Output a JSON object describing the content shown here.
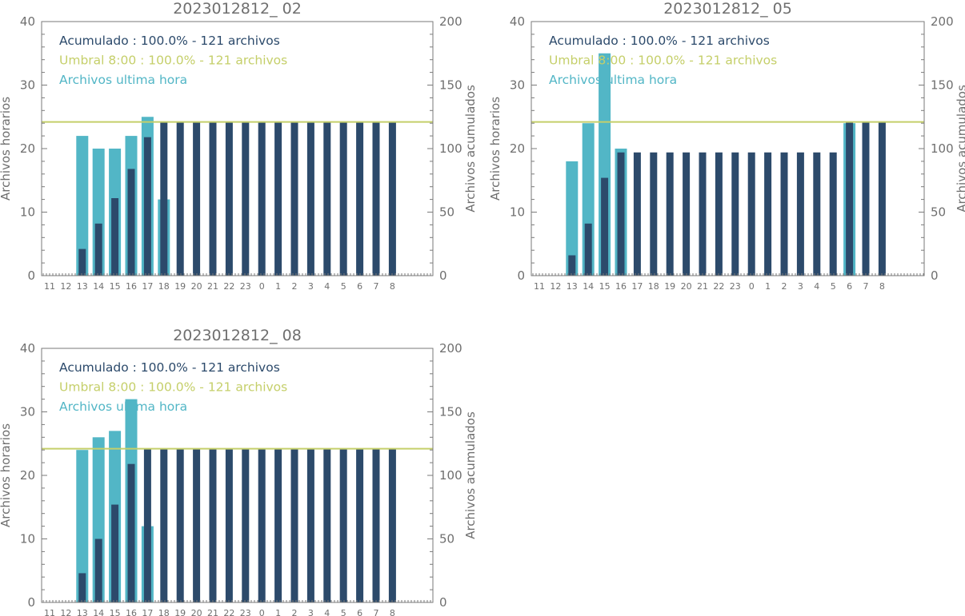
{
  "colors": {
    "hourly": "#52b6c6",
    "cumulative": "#2c4a6b",
    "threshold": "#c5cf6a",
    "axis": "#7a7a7a",
    "text": "#6f6f6f"
  },
  "chart_data": [
    {
      "type": "bar",
      "title": "2023012812_ 02",
      "ylabel": "Archivos horarios",
      "y2label": "Archivos acumulados",
      "ylim": [
        0,
        40
      ],
      "y2lim": [
        0,
        200
      ],
      "yticks": [
        0,
        10,
        20,
        30,
        40
      ],
      "y2ticks": [
        0,
        50,
        100,
        150,
        200
      ],
      "categories": [
        "11",
        "12",
        "13",
        "14",
        "15",
        "16",
        "17",
        "18",
        "19",
        "20",
        "21",
        "22",
        "23",
        "0",
        "1",
        "2",
        "3",
        "4",
        "5",
        "6",
        "7",
        "8"
      ],
      "threshold": 121,
      "legend": [
        {
          "text": "Acumulado : 100.0% - 121 archivos",
          "color_key": "cumulative"
        },
        {
          "text": "Umbral 8:00 : 100.0% - 121 archivos",
          "color_key": "threshold"
        },
        {
          "text": "Archivos ultima hora",
          "color_key": "hourly"
        }
      ],
      "series": [
        {
          "name": "Archivos ultima hora",
          "values": [
            0,
            0,
            22,
            20,
            20,
            22,
            25,
            12,
            0,
            0,
            0,
            0,
            0,
            0,
            0,
            0,
            0,
            0,
            0,
            0,
            0,
            0
          ]
        },
        {
          "name": "Acumulado",
          "values": [
            0,
            0,
            21,
            41,
            61,
            84,
            109,
            121,
            121,
            121,
            121,
            121,
            121,
            121,
            121,
            121,
            121,
            121,
            121,
            121,
            121,
            121
          ]
        }
      ]
    },
    {
      "type": "bar",
      "title": "2023012812_ 05",
      "ylabel": "Archivos horarios",
      "y2label": "Archivos acumulados",
      "ylim": [
        0,
        40
      ],
      "y2lim": [
        0,
        200
      ],
      "yticks": [
        0,
        10,
        20,
        30,
        40
      ],
      "y2ticks": [
        0,
        50,
        100,
        150,
        200
      ],
      "categories": [
        "11",
        "12",
        "13",
        "14",
        "15",
        "16",
        "17",
        "18",
        "19",
        "20",
        "21",
        "22",
        "23",
        "0",
        "1",
        "2",
        "3",
        "4",
        "5",
        "6",
        "7",
        "8"
      ],
      "threshold": 121,
      "legend": [
        {
          "text": "Acumulado : 100.0% - 121 archivos",
          "color_key": "cumulative"
        },
        {
          "text": "Umbral 8:00 : 100.0% - 121 archivos",
          "color_key": "threshold"
        },
        {
          "text": "Archivos ultima hora",
          "color_key": "hourly"
        }
      ],
      "series": [
        {
          "name": "Archivos ultima hora",
          "values": [
            0,
            0,
            18,
            24,
            35,
            20,
            0,
            0,
            0,
            0,
            0,
            0,
            0,
            0,
            0,
            0,
            0,
            0,
            0,
            24,
            0,
            0
          ]
        },
        {
          "name": "Acumulado",
          "values": [
            0,
            0,
            16,
            41,
            77,
            97,
            97,
            97,
            97,
            97,
            97,
            97,
            97,
            97,
            97,
            97,
            97,
            97,
            97,
            121,
            121,
            121
          ]
        }
      ]
    },
    {
      "type": "bar",
      "title": "2023012812_ 08",
      "ylabel": "Archivos horarios",
      "y2label": "Archivos acumulados",
      "ylim": [
        0,
        40
      ],
      "y2lim": [
        0,
        200
      ],
      "yticks": [
        0,
        10,
        20,
        30,
        40
      ],
      "y2ticks": [
        0,
        50,
        100,
        150,
        200
      ],
      "categories": [
        "11",
        "12",
        "13",
        "14",
        "15",
        "16",
        "17",
        "18",
        "19",
        "20",
        "21",
        "22",
        "23",
        "0",
        "1",
        "2",
        "3",
        "4",
        "5",
        "6",
        "7",
        "8"
      ],
      "threshold": 121,
      "legend": [
        {
          "text": "Acumulado : 100.0% - 121 archivos",
          "color_key": "cumulative"
        },
        {
          "text": "Umbral 8:00 : 100.0% - 121 archivos",
          "color_key": "threshold"
        },
        {
          "text": "Archivos ultima hora",
          "color_key": "hourly"
        }
      ],
      "series": [
        {
          "name": "Archivos ultima hora",
          "values": [
            0,
            0,
            24,
            26,
            27,
            32,
            12,
            0,
            0,
            0,
            0,
            0,
            0,
            0,
            0,
            0,
            0,
            0,
            0,
            0,
            0,
            0
          ]
        },
        {
          "name": "Acumulado",
          "values": [
            0,
            0,
            23,
            50,
            77,
            109,
            121,
            121,
            121,
            121,
            121,
            121,
            121,
            121,
            121,
            121,
            121,
            121,
            121,
            121,
            121,
            121
          ]
        }
      ]
    }
  ]
}
